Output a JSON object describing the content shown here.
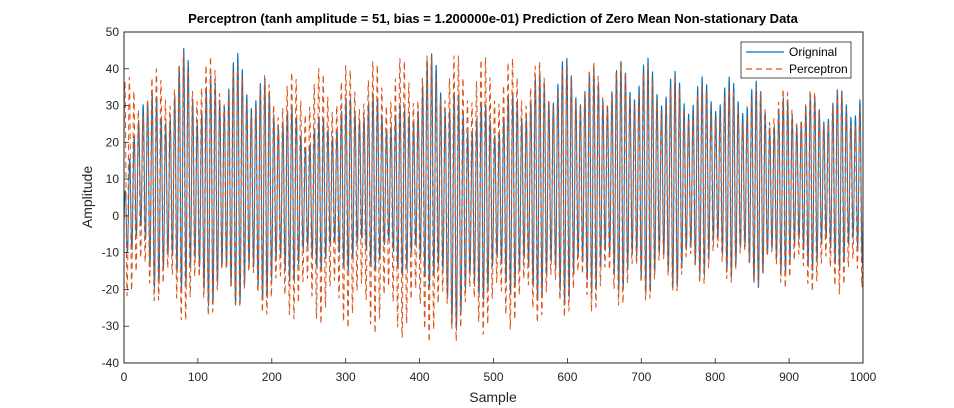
{
  "chart_data": {
    "type": "line",
    "title": "Perceptron (tanh amplitude = 51, bias = 1.200000e-01) Prediction of Zero Mean Non-stationary Data",
    "xlabel": "Sample",
    "ylabel": "Amplitude",
    "xlim": [
      0,
      1000
    ],
    "ylim": [
      -40,
      50
    ],
    "xticks": [
      0,
      100,
      200,
      300,
      400,
      500,
      600,
      700,
      800,
      900,
      1000
    ],
    "yticks": [
      -40,
      -30,
      -20,
      -10,
      0,
      10,
      20,
      30,
      40,
      50
    ],
    "grid": false,
    "legend": "top-right",
    "series": [
      {
        "name": "Origninal",
        "color": "#0072BD",
        "style": "solid",
        "approx_peaks_x": [
          0,
          25,
          50,
          85,
          100,
          150,
          180,
          250,
          320,
          380,
          425,
          440,
          500,
          590,
          640,
          700,
          760,
          850,
          880,
          1000
        ],
        "approx_peaks_y": [
          5,
          40,
          30,
          48,
          35,
          45,
          40,
          25,
          35,
          30,
          49,
          35,
          30,
          44,
          40,
          44,
          38,
          38,
          32,
          36
        ],
        "approx_troughs_x": [
          20,
          40,
          85,
          110,
          150,
          180,
          250,
          300,
          360,
          420,
          440,
          500,
          590,
          650,
          700,
          750,
          800,
          860,
          900,
          1000
        ],
        "approx_troughs_y": [
          -10,
          -20,
          -20,
          -25,
          -25,
          -25,
          -15,
          -15,
          -15,
          -20,
          -33,
          -20,
          -25,
          -20,
          -22,
          -20,
          -15,
          -20,
          -15,
          -15
        ]
      },
      {
        "name": "Perceptron",
        "color": "#D95319",
        "style": "dashed",
        "approx_peaks_x": [
          25,
          85,
          150,
          180,
          425,
          590,
          700,
          760,
          1000
        ],
        "approx_peaks_y": [
          38,
          45,
          42,
          38,
          45,
          42,
          42,
          36,
          34
        ],
        "approx_troughs_x": [
          30,
          85,
          150,
          180,
          430,
          590,
          700,
          800,
          1000
        ],
        "approx_troughs_y": [
          -22,
          -30,
          -25,
          -27,
          -35,
          -28,
          -24,
          -18,
          -22
        ]
      }
    ]
  }
}
